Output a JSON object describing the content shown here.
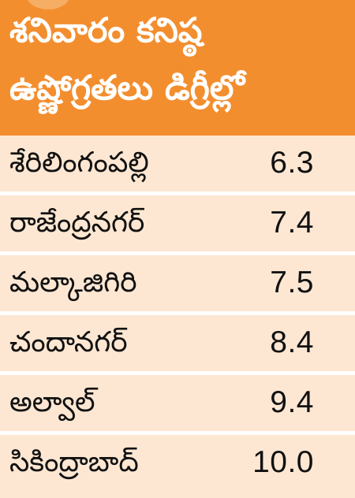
{
  "header": {
    "title_line1": "శనివారం కనిష్ఠ",
    "title_line2": "ఉష్ణోగ్రతలు డిగ్రీల్లో"
  },
  "rows": [
    {
      "place": "శేరిలింగంపల్లి",
      "temp": "6.3"
    },
    {
      "place": "రాజేంద్రనగర్",
      "temp": "7.4"
    },
    {
      "place": "మల్కాజిగిరి",
      "temp": "7.5"
    },
    {
      "place": "చందానగర్",
      "temp": "8.4"
    },
    {
      "place": "అల్వాల్",
      "temp": "9.4"
    },
    {
      "place": "సికింద్రాబాద్",
      "temp": "10.0"
    }
  ],
  "colors": {
    "header_bg": "#f38e2f",
    "row_bg": "#fde7d2",
    "text": "#111111"
  }
}
